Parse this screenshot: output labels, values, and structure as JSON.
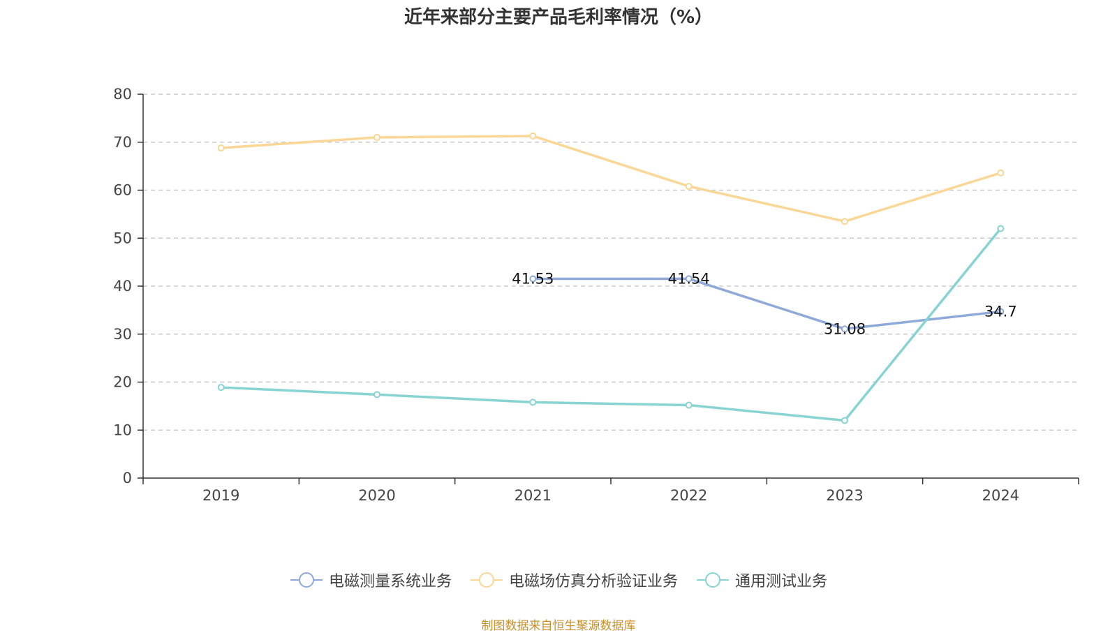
{
  "chart_data": {
    "type": "line",
    "title": "近年来部分主要产品毛利率情况（%）",
    "categories": [
      "2019",
      "2020",
      "2021",
      "2022",
      "2023",
      "2024"
    ],
    "ylim": [
      0,
      80
    ],
    "yticks": [
      0,
      10,
      20,
      30,
      40,
      50,
      60,
      70,
      80
    ],
    "grid": true,
    "legend_position": "bottom",
    "series": [
      {
        "name": "电磁测量系统业务",
        "color": "#8fa9d8",
        "values": [
          null,
          null,
          41.53,
          41.54,
          31.08,
          34.7
        ],
        "labels": [
          "",
          "",
          "41.53",
          "41.54",
          "31.08",
          "34.7"
        ]
      },
      {
        "name": "电磁场仿真分析验证业务",
        "color": "#fad797",
        "values": [
          68.8,
          71.0,
          71.3,
          60.8,
          53.5,
          63.6
        ],
        "labels": [
          "",
          "",
          "",
          "",
          "",
          ""
        ]
      },
      {
        "name": "通用测试业务",
        "color": "#88d4d2",
        "values": [
          18.9,
          17.4,
          15.8,
          15.2,
          12.0,
          52.0
        ],
        "labels": [
          "",
          "",
          "",
          "",
          "",
          ""
        ]
      }
    ]
  },
  "source_note": "制图数据来自恒生聚源数据库"
}
